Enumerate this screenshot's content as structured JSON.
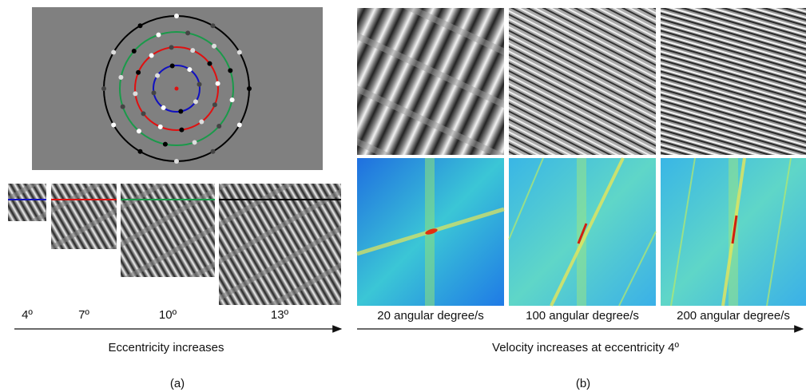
{
  "panel_a": {
    "eccentricities": [
      "4º",
      "7º",
      "10º",
      "13º"
    ],
    "caption": "Eccentricity increases",
    "label": "(a)"
  },
  "panel_b": {
    "velocities": [
      "20 angular degree/s",
      "100 angular degree/s",
      "200 angular degree/s"
    ],
    "caption": "Velocity increases at eccentricity 4º",
    "label": "(b)"
  }
}
